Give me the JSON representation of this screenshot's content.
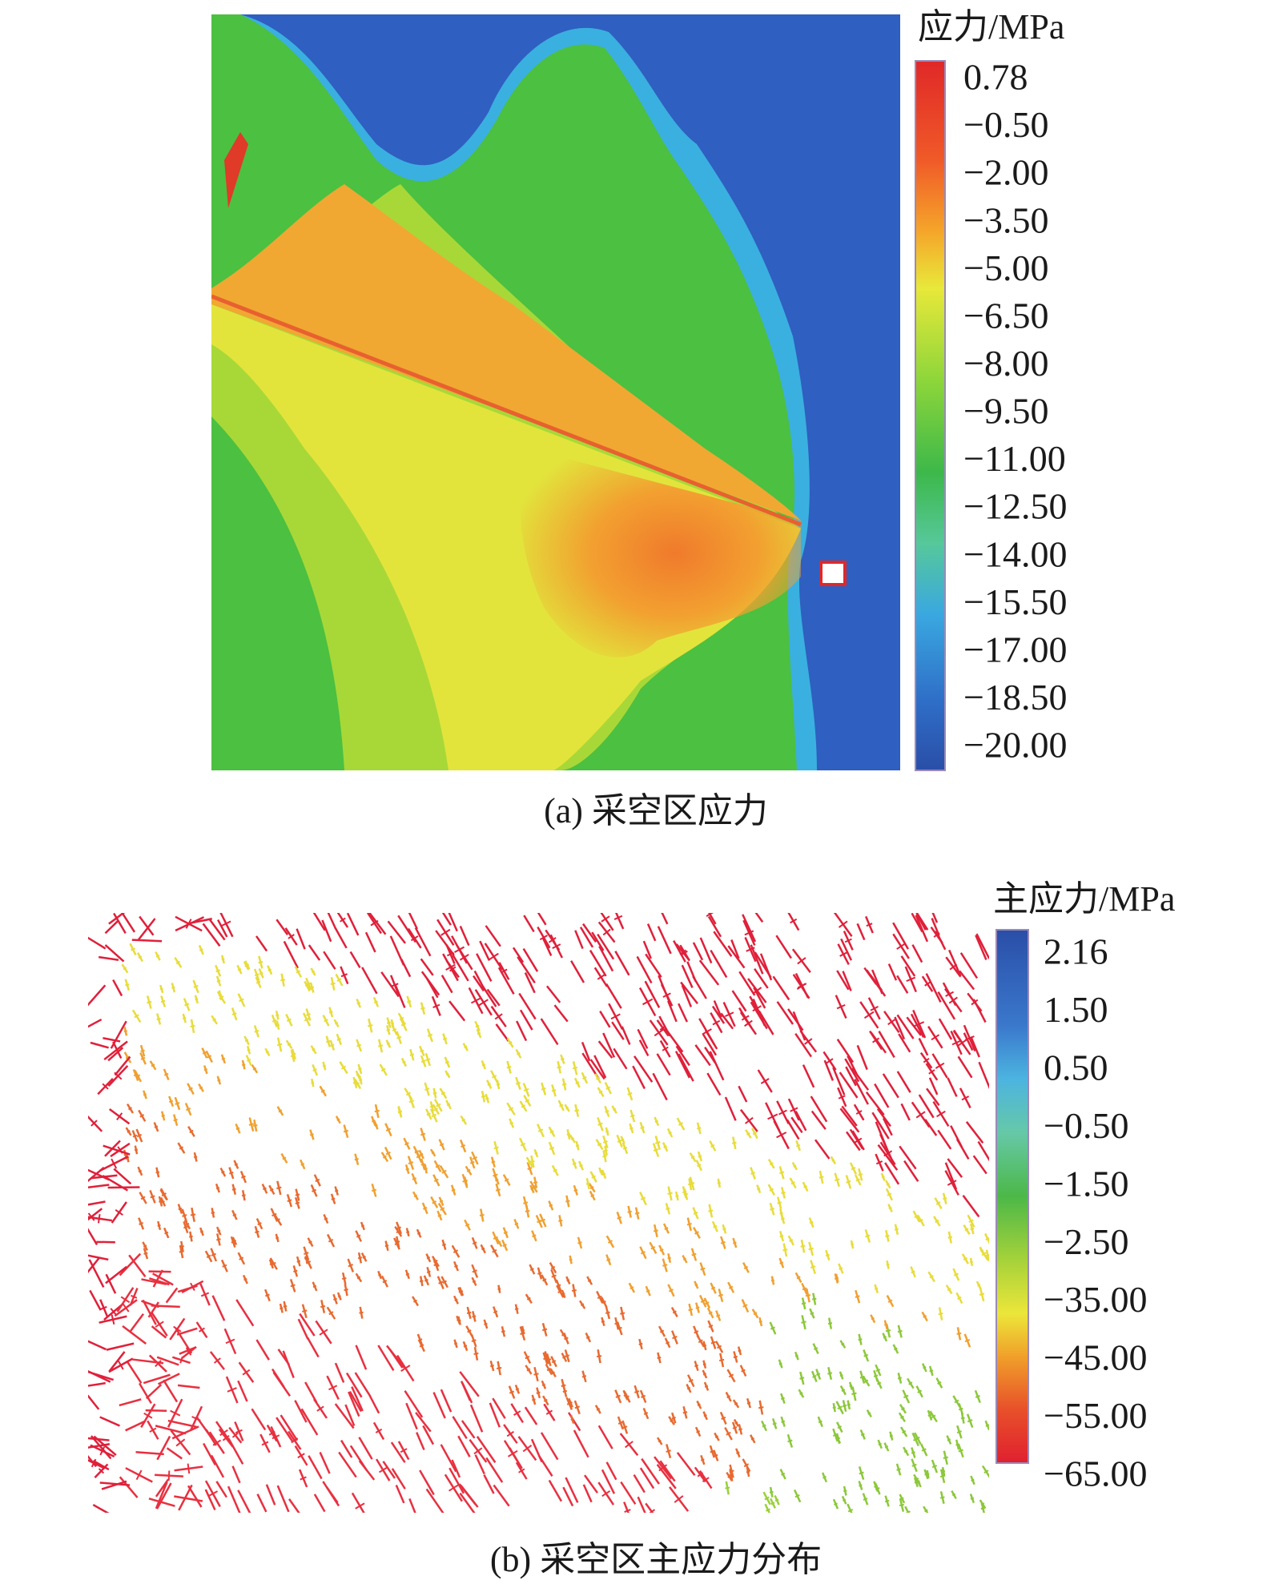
{
  "panels": [
    {
      "legend_title": "应力/MPa",
      "legend_labels": [
        "0.78",
        "−0.50",
        "−2.00",
        "−3.50",
        "−5.00",
        "−6.50",
        "−8.00",
        "−9.50",
        "−11.00",
        "−12.50",
        "−14.00",
        "−15.50",
        "−17.00",
        "−18.50",
        "−20.00"
      ],
      "caption": "(a) 采空区应力"
    },
    {
      "legend_title": "主应力/MPa",
      "legend_labels": [
        "2.16",
        "1.50",
        "0.50",
        "−0.50",
        "−1.50",
        "−2.50",
        "−35.00",
        "−45.00",
        "−55.00",
        "−65.00"
      ],
      "caption": "(b) 采空区主应力分布"
    }
  ]
}
